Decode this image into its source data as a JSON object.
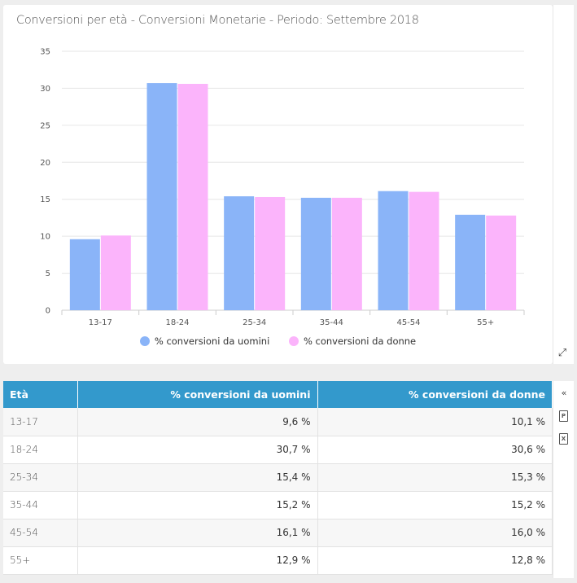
{
  "chart": {
    "title": "Conversioni per età - Conversioni Monetarie - Periodo: Settembre 2018",
    "legend": [
      {
        "label": "% conversioni da uomini",
        "color": "#8ab4f8"
      },
      {
        "label": "% conversioni da donne",
        "color": "#fbb4fb"
      }
    ]
  },
  "chart_data": {
    "type": "bar",
    "title": "Conversioni per età - Conversioni Monetarie - Periodo: Settembre 2018",
    "categories": [
      "13-17",
      "18-24",
      "25-34",
      "35-44",
      "45-54",
      "55+"
    ],
    "series": [
      {
        "name": "% conversioni da uomini",
        "values": [
          9.6,
          30.7,
          15.4,
          15.2,
          16.1,
          12.9
        ],
        "color": "#8ab4f8"
      },
      {
        "name": "% conversioni da donne",
        "values": [
          10.1,
          30.6,
          15.3,
          15.2,
          16.0,
          12.8
        ],
        "color": "#fbb4fb"
      }
    ],
    "yticks": [
      "0",
      "5",
      "10",
      "15",
      "20",
      "25",
      "30",
      "35"
    ],
    "ylim": [
      0,
      35
    ],
    "grid": true,
    "legend_position": "bottom"
  },
  "table": {
    "headers": [
      "Età",
      "% conversioni da uomini",
      "% conversioni da donne"
    ],
    "rows": [
      [
        "13-17",
        "9,6 %",
        "10,1 %"
      ],
      [
        "18-24",
        "30,7 %",
        "30,6 %"
      ],
      [
        "25-34",
        "15,4 %",
        "15,3 %"
      ],
      [
        "35-44",
        "15,2 %",
        "15,2 %"
      ],
      [
        "45-54",
        "16,1 %",
        "16,0 %"
      ],
      [
        "55+",
        "12,9 %",
        "12,8 %"
      ]
    ]
  },
  "tools": {
    "collapse_icon": "double-chevron-left-icon",
    "pdf_icon": "pdf-file-icon",
    "excel_icon": "excel-file-icon",
    "expand_icon": "expand-arrows-icon"
  }
}
